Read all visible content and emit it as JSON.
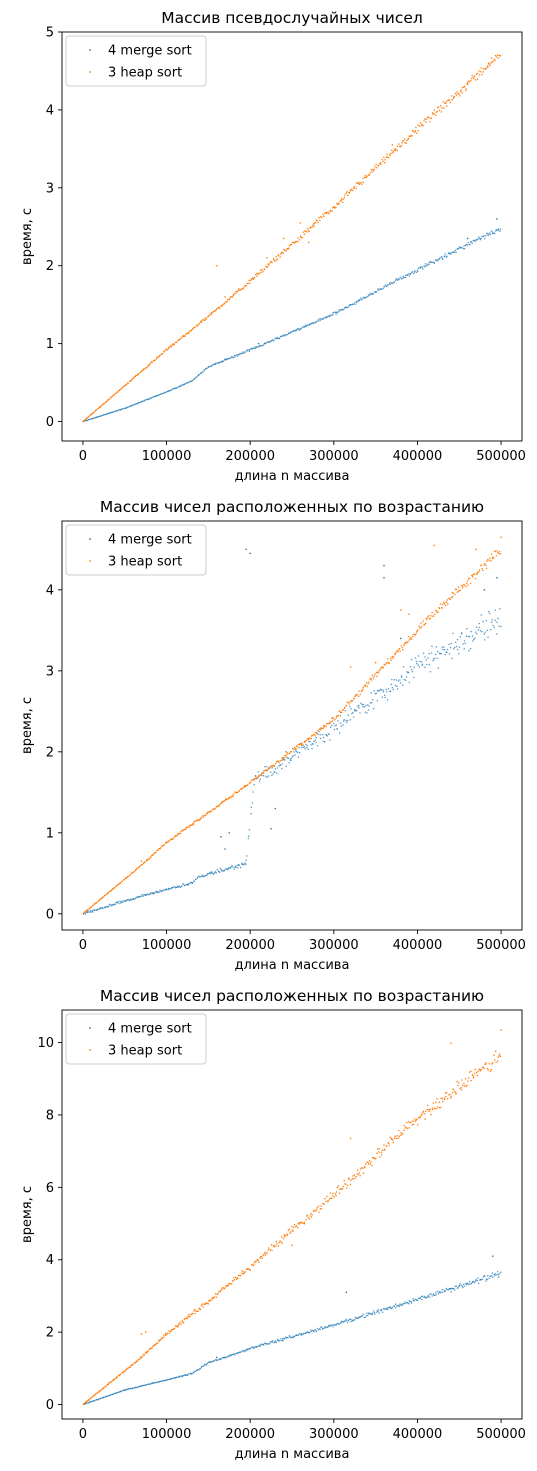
{
  "chart_data": [
    {
      "type": "scatter",
      "title": "Массив псевдослучайных чисел",
      "xlabel": "длина n массива",
      "ylabel": "время, с",
      "xlim": [
        -25000,
        525000
      ],
      "ylim": [
        -0.25,
        5.0
      ],
      "xticks": [
        0,
        100000,
        200000,
        300000,
        400000,
        500000
      ],
      "yticks": [
        0,
        1,
        2,
        3,
        4,
        5
      ],
      "legend": "top-left",
      "series": [
        {
          "name": "4 merge sort",
          "color": "#1f77b4",
          "curve": [
            [
              0,
              0
            ],
            [
              50000,
              0.17
            ],
            [
              100000,
              0.38
            ],
            [
              130000,
              0.52
            ],
            [
              150000,
              0.7
            ],
            [
              200000,
              0.92
            ],
            [
              300000,
              1.38
            ],
            [
              400000,
              1.95
            ],
            [
              500000,
              2.48
            ]
          ],
          "outliers": [
            [
              495000,
              2.6
            ],
            [
              460000,
              2.35
            ],
            [
              170000,
              0.8
            ],
            [
              210000,
              1.0
            ]
          ]
        },
        {
          "name": "3 heap sort",
          "color": "#ff7f0e",
          "curve": [
            [
              0,
              0
            ],
            [
              100000,
              0.92
            ],
            [
              150000,
              1.35
            ],
            [
              200000,
              1.8
            ],
            [
              300000,
              2.75
            ],
            [
              400000,
              3.75
            ],
            [
              500000,
              4.72
            ]
          ],
          "outliers": [
            [
              160000,
              2.0
            ],
            [
              260000,
              2.55
            ],
            [
              240000,
              2.35
            ],
            [
              170000,
              1.6
            ],
            [
              220000,
              2.1
            ],
            [
              270000,
              2.3
            ],
            [
              370000,
              3.55
            ],
            [
              460000,
              4.35
            ],
            [
              485000,
              4.6
            ]
          ]
        }
      ]
    },
    {
      "type": "scatter",
      "title": "Массив чисел расположенных по возрастанию",
      "xlabel": "длина n массива",
      "ylabel": "время, с",
      "xlim": [
        -25000,
        525000
      ],
      "ylim": [
        -0.2,
        4.85
      ],
      "xticks": [
        0,
        100000,
        200000,
        300000,
        400000,
        500000
      ],
      "yticks": [
        0,
        1,
        2,
        3,
        4
      ],
      "legend": "top-left",
      "series": [
        {
          "name": "4 merge sort",
          "color": "#1f77b4",
          "curve": [
            [
              0,
              0
            ],
            [
              50000,
              0.16
            ],
            [
              100000,
              0.3
            ],
            [
              130000,
              0.38
            ],
            [
              140000,
              0.46
            ],
            [
              195000,
              0.62
            ],
            [
              205000,
              1.65
            ],
            [
              300000,
              2.3
            ],
            [
              400000,
              3.05
            ],
            [
              500000,
              3.65
            ]
          ],
          "outliers": [
            [
              195000,
              4.5
            ],
            [
              200000,
              4.45
            ],
            [
              165000,
              0.95
            ],
            [
              170000,
              0.8
            ],
            [
              175000,
              1.0
            ],
            [
              225000,
              1.05
            ],
            [
              230000,
              1.3
            ],
            [
              360000,
              4.3
            ],
            [
              360000,
              4.15
            ],
            [
              380000,
              3.4
            ],
            [
              480000,
              4.0
            ],
            [
              495000,
              4.15
            ]
          ]
        },
        {
          "name": "3 heap sort",
          "color": "#ff7f0e",
          "curve": [
            [
              0,
              0
            ],
            [
              70000,
              0.6
            ],
            [
              100000,
              0.88
            ],
            [
              150000,
              1.25
            ],
            [
              200000,
              1.62
            ],
            [
              300000,
              2.4
            ],
            [
              400000,
              3.5
            ],
            [
              500000,
              4.5
            ]
          ],
          "outliers": [
            [
              70000,
              0.65
            ],
            [
              420000,
              4.55
            ],
            [
              320000,
              3.05
            ],
            [
              350000,
              3.1
            ],
            [
              380000,
              3.75
            ],
            [
              390000,
              3.7
            ],
            [
              470000,
              4.5
            ],
            [
              500000,
              4.65
            ]
          ]
        }
      ]
    },
    {
      "type": "scatter",
      "title": "Массив чисел расположенных по возрастанию",
      "xlabel": "длина n массива",
      "ylabel": "время, с",
      "xlim": [
        -25000,
        525000
      ],
      "ylim": [
        -0.4,
        10.9
      ],
      "xticks": [
        0,
        100000,
        200000,
        300000,
        400000,
        500000
      ],
      "yticks": [
        0,
        2,
        4,
        6,
        8,
        10
      ],
      "legend": "top-left",
      "series": [
        {
          "name": "4 merge sort",
          "color": "#1f77b4",
          "curve": [
            [
              0,
              0
            ],
            [
              50000,
              0.4
            ],
            [
              100000,
              0.68
            ],
            [
              130000,
              0.85
            ],
            [
              150000,
              1.15
            ],
            [
              200000,
              1.55
            ],
            [
              300000,
              2.2
            ],
            [
              400000,
              2.9
            ],
            [
              500000,
              3.62
            ]
          ],
          "outliers": [
            [
              490000,
              4.1
            ],
            [
              315000,
              3.1
            ],
            [
              160000,
              1.3
            ],
            [
              440000,
              3.2
            ]
          ]
        },
        {
          "name": "3 heap sort",
          "color": "#ff7f0e",
          "curve": [
            [
              0,
              0
            ],
            [
              70000,
              1.3
            ],
            [
              100000,
              1.95
            ],
            [
              150000,
              2.85
            ],
            [
              200000,
              3.8
            ],
            [
              300000,
              5.8
            ],
            [
              400000,
              7.9
            ],
            [
              500000,
              9.65
            ]
          ],
          "outliers": [
            [
              70000,
              1.95
            ],
            [
              75000,
              2.0
            ],
            [
              320000,
              7.35
            ],
            [
              440000,
              9.98
            ],
            [
              500000,
              10.35
            ],
            [
              250000,
              4.4
            ]
          ]
        }
      ]
    }
  ]
}
